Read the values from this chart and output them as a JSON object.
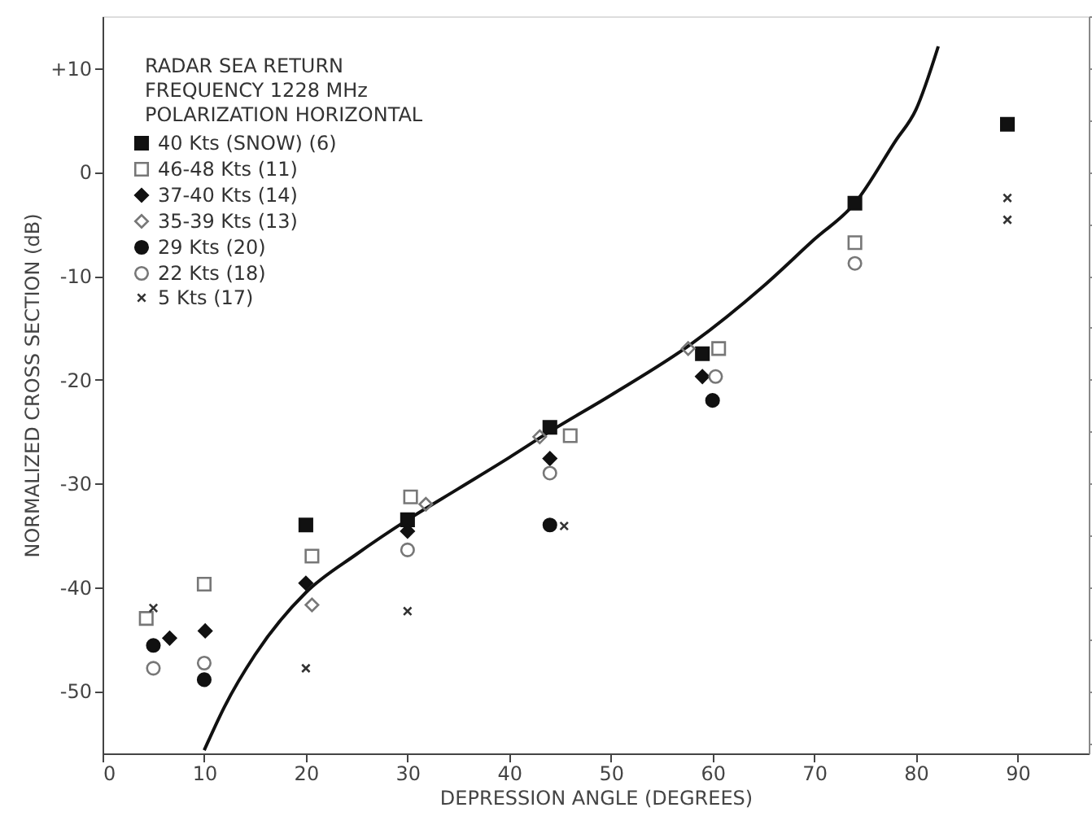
{
  "chart_data": {
    "type": "scatter",
    "xlabel": "DEPRESSION ANGLE (DEGREES)",
    "ylabel": "NORMALIZED CROSS SECTION (dB)",
    "annotations": [
      "RADAR SEA RETURN",
      "FREQUENCY 1228 MHz",
      "POLARIZATION HORIZONTAL"
    ],
    "xlim": [
      0,
      97
    ],
    "xticks": [
      0,
      10,
      20,
      30,
      40,
      50,
      60,
      70,
      80,
      90
    ],
    "ylim": [
      -56,
      15
    ],
    "yticks": [
      {
        "value": 10,
        "label": "+10"
      },
      0,
      -10,
      -20,
      -30,
      -40,
      -50
    ],
    "grid": false,
    "legend": "top left",
    "series": [
      {
        "name": "40 Kts (SNOW) (6)",
        "color": "#111111",
        "marker": "square",
        "x": [
          20,
          30,
          44,
          59,
          74,
          89
        ],
        "values": [
          -34,
          -33.5,
          -24.6,
          -17.5,
          -3,
          4.6
        ]
      },
      {
        "name": "46-48 Kts (11)",
        "color": "#777777",
        "marker": "square",
        "x": [
          4.3,
          10,
          20.6,
          30.3,
          46,
          60.6,
          74
        ],
        "values": [
          -43,
          -39.7,
          -37,
          -31.3,
          -25.4,
          -17,
          -6.8
        ]
      },
      {
        "name": "37-40 Kts (14)",
        "color": "#111111",
        "marker": "diamond",
        "x": [
          6.6,
          10.1,
          20,
          30,
          44,
          59
        ],
        "values": [
          -44.9,
          -44.2,
          -39.6,
          -34.6,
          -27.6,
          -19.7
        ]
      },
      {
        "name": "35-39 Kts (13)",
        "color": "#777777",
        "marker": "diamond",
        "x": [
          20.6,
          31.8,
          43,
          57.6
        ],
        "values": [
          -41.7,
          -32,
          -25.5,
          -17
        ]
      },
      {
        "name": "29 Kts (20)",
        "color": "#111111",
        "marker": "circle",
        "x": [
          5,
          10,
          44,
          60
        ],
        "values": [
          -45.6,
          -48.9,
          -34,
          -22
        ]
      },
      {
        "name": "22 Kts (18)",
        "color": "#777777",
        "marker": "circle",
        "x": [
          5,
          10,
          30,
          44,
          60.3,
          74
        ],
        "values": [
          -47.8,
          -47.3,
          -36.4,
          -29,
          -19.7,
          -8.8
        ]
      },
      {
        "name": "5 Kts (17)",
        "color": "#333333",
        "marker": "cross",
        "x": [
          5,
          20,
          30,
          45.4,
          89,
          89
        ],
        "values": [
          -42,
          -47.8,
          -42.3,
          -34.1,
          -2.5,
          -4.6
        ]
      },
      {
        "type": "line",
        "color": "#111111",
        "x": [
          10,
          12,
          15,
          20,
          25,
          30,
          35,
          40,
          44,
          50,
          58,
          65,
          70,
          74,
          78,
          80,
          82.2
        ],
        "values": [
          -55.7,
          -51.5,
          -46.5,
          -40.5,
          -36.8,
          -33.5,
          -30.5,
          -27.5,
          -25,
          -21.5,
          -16.5,
          -11,
          -6.5,
          -3,
          3,
          6,
          12.1
        ]
      }
    ]
  }
}
